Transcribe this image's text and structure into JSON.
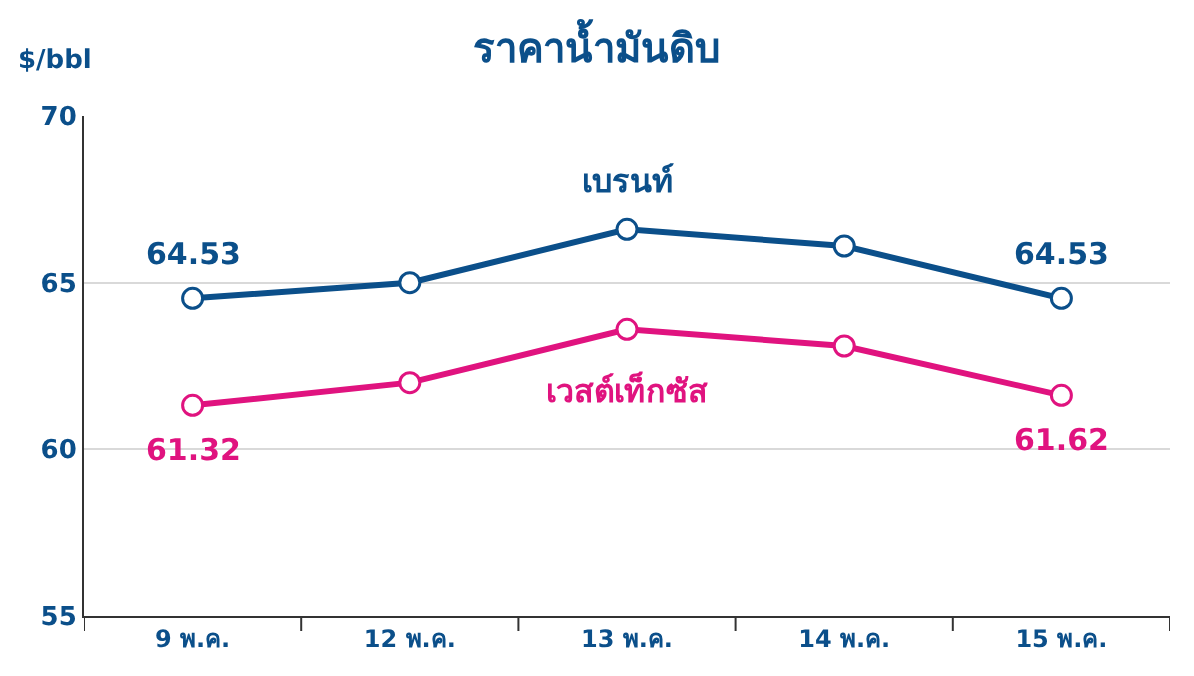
{
  "chart_data": {
    "type": "line",
    "title": "ราคาน้ำมันดิบ",
    "ylabel": "$/bbl",
    "categories": [
      "9 พ.ค.",
      "12 พ.ค.",
      "13 พ.ค.",
      "14 พ.ค.",
      "15 พ.ค."
    ],
    "series": [
      {
        "name": "เบรนท์",
        "color": "#0b4f8a",
        "values": [
          64.53,
          65.0,
          66.6,
          66.1,
          64.53
        ],
        "value_labels": [
          "64.53",
          null,
          null,
          null,
          "64.53"
        ]
      },
      {
        "name": "เวสต์เท็กซัส",
        "color": "#e0137f",
        "values": [
          61.32,
          62.0,
          63.6,
          63.1,
          61.62
        ],
        "value_labels": [
          "61.32",
          null,
          null,
          null,
          "61.62"
        ]
      }
    ],
    "ylim": [
      55,
      70
    ],
    "yticks": [
      55,
      60,
      65,
      70
    ],
    "grid": "y",
    "marker": "circle",
    "line_style": "solid",
    "legend": false
  }
}
